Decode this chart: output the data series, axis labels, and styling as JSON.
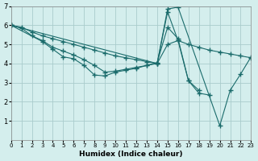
{
  "xlabel": "Humidex (Indice chaleur)",
  "ylabel": "",
  "bg_color": "#d4eeed",
  "grid_color": "#aacccc",
  "line_color": "#1a6b6b",
  "xlim": [
    0,
    23
  ],
  "ylim": [
    0,
    7
  ],
  "xticks": [
    0,
    1,
    2,
    3,
    4,
    5,
    6,
    7,
    8,
    9,
    10,
    11,
    12,
    13,
    14,
    15,
    16,
    17,
    18,
    19,
    20,
    21,
    22,
    23
  ],
  "yticks": [
    1,
    2,
    3,
    4,
    5,
    6,
    7
  ],
  "series": [
    {
      "x": [
        0,
        1,
        2,
        3,
        4,
        5,
        6,
        7,
        8,
        9,
        10,
        11,
        12,
        13,
        14,
        15,
        16,
        17,
        18,
        19,
        20,
        21,
        22,
        23
      ],
      "y": [
        6.0,
        5.9,
        5.65,
        5.45,
        5.3,
        5.15,
        5.0,
        4.85,
        4.7,
        4.55,
        4.4,
        4.3,
        4.2,
        4.1,
        4.0,
        5.0,
        5.2,
        5.0,
        4.85,
        4.7,
        4.6,
        4.5,
        4.4,
        4.3
      ]
    },
    {
      "x": [
        0,
        1,
        2,
        3,
        4,
        5,
        6,
        7,
        8,
        9,
        10,
        11,
        12,
        13,
        14,
        15,
        16,
        17,
        18,
        19
      ],
      "y": [
        6.0,
        5.85,
        5.45,
        5.2,
        4.85,
        4.65,
        4.45,
        4.2,
        3.9,
        3.55,
        3.6,
        3.7,
        3.8,
        3.9,
        4.0,
        6.7,
        5.2,
        3.1,
        2.45,
        2.35
      ]
    },
    {
      "x": [
        0,
        14,
        15,
        16,
        20,
        21,
        22,
        23
      ],
      "y": [
        6.0,
        4.0,
        6.85,
        6.95,
        0.75,
        2.6,
        3.45,
        4.35
      ]
    },
    {
      "x": [
        0,
        3,
        4,
        5,
        6,
        7,
        8,
        9,
        10,
        11,
        12,
        13,
        14,
        15,
        16,
        17,
        18
      ],
      "y": [
        6.0,
        5.15,
        4.75,
        4.35,
        4.25,
        3.9,
        3.4,
        3.35,
        3.55,
        3.65,
        3.75,
        3.9,
        4.05,
        5.9,
        5.3,
        3.1,
        2.6
      ]
    }
  ]
}
